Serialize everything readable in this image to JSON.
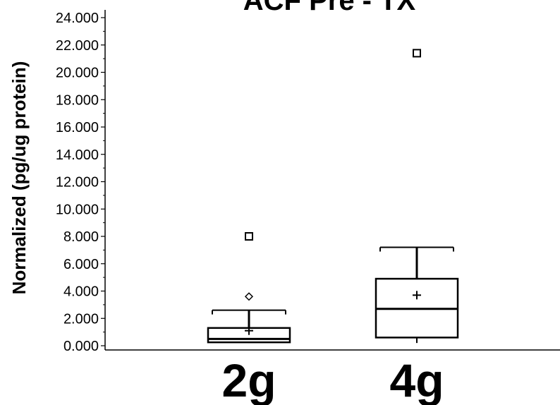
{
  "chart_data": {
    "type": "box",
    "title": "ACF Pre - TX",
    "ylabel": "Normalized (pg/ug protein)",
    "xlabel": "",
    "ylim": [
      0,
      24
    ],
    "yticks": [
      0,
      2,
      4,
      6,
      8,
      10,
      12,
      14,
      16,
      18,
      20,
      22,
      24
    ],
    "ytick_labels": [
      "0.000",
      "2.000",
      "4.000",
      "6.000",
      "8.000",
      "10.000",
      "12.000",
      "14.000",
      "16.000",
      "18.000",
      "20.000",
      "22.000",
      "24.000"
    ],
    "categories": [
      "2g",
      "4g"
    ],
    "boxes": [
      {
        "category": "2g",
        "whisker_low": 0.2,
        "q1": 0.25,
        "median": 0.5,
        "q3": 1.3,
        "whisker_high": 2.6,
        "mean": 1.1,
        "outliers": [
          3.6,
          8.0
        ]
      },
      {
        "category": "4g",
        "whisker_low": 0.2,
        "q1": 0.6,
        "median": 2.7,
        "q3": 4.9,
        "whisker_high": 7.2,
        "mean": 3.7,
        "outliers": [
          21.4
        ]
      }
    ],
    "grid": false,
    "colors": {
      "stroke": "#000000",
      "background": "#ffffff"
    }
  }
}
